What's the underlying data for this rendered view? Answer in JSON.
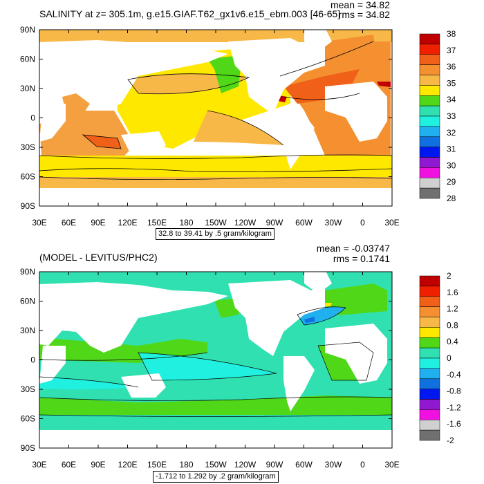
{
  "panels": [
    {
      "title": "SALINITY at z= 305.1m, g.e15.GIAF.T62_gx1v6.e15_ebm.003 [46-65]",
      "mean_label": "mean = 34.82",
      "rms_label": "rms = 34.82",
      "info_label": "32.8 to 39.41 by .5 gram/kilogram",
      "y_ticks": [
        "90N",
        "60N",
        "30N",
        "0",
        "30S",
        "60S",
        "90S"
      ],
      "x_ticks": [
        "30E",
        "60E",
        "90E",
        "120E",
        "150E",
        "180",
        "150W",
        "120W",
        "90W",
        "60W",
        "30W",
        "0",
        "30E"
      ],
      "colorbar_labels": [
        "38",
        "37",
        "36",
        "35",
        "34",
        "33",
        "32",
        "31",
        "30",
        "29",
        "28"
      ],
      "colorbar_colors": [
        "#c00000",
        "#ee2000",
        "#f06018",
        "#f49030",
        "#f8b848",
        "#ffe800",
        "#50d818",
        "#30e0b0",
        "#20f0e0",
        "#20b0f0",
        "#1070e0",
        "#0018f0",
        "#9018d0",
        "#f010e0",
        "#d0d0d0",
        "#707070"
      ]
    },
    {
      "title": "(MODEL - LEVITUS/PHC2)",
      "mean_label": "mean = -0.03747",
      "rms_label": "rms = 0.1741",
      "info_label": "-1.712 to 1.292 by .2 gram/kilogram",
      "y_ticks": [
        "90N",
        "60N",
        "30N",
        "0",
        "30S",
        "60S",
        "90S"
      ],
      "x_ticks": [
        "30E",
        "60E",
        "90E",
        "120E",
        "150E",
        "180",
        "150W",
        "120W",
        "90W",
        "60W",
        "30W",
        "0",
        "30E"
      ],
      "colorbar_labels": [
        "2",
        "1.6",
        "1.2",
        "0.8",
        "0.4",
        "0",
        "-0.4",
        "-0.8",
        "-1.2",
        "-1.6",
        "-2"
      ],
      "colorbar_colors": [
        "#c00000",
        "#ee2000",
        "#f06018",
        "#f49030",
        "#f8b848",
        "#ffe800",
        "#50d818",
        "#30e0b0",
        "#20f0e0",
        "#20b0f0",
        "#1070e0",
        "#0018f0",
        "#9018d0",
        "#f010e0",
        "#d0d0d0",
        "#707070"
      ]
    }
  ],
  "chart_data": [
    {
      "type": "heatmap",
      "title": "SALINITY at z= 305.1m, g.e15.GIAF.T62_gx1v6.e15_ebm.003 [46-65]",
      "x_ticks": [
        "30E",
        "60E",
        "90E",
        "120E",
        "150E",
        "180",
        "150W",
        "120W",
        "90W",
        "60W",
        "30W",
        "0",
        "30E"
      ],
      "y_ticks": [
        "90N",
        "60N",
        "30N",
        "0",
        "30S",
        "60S",
        "90S"
      ],
      "xlim": [
        30,
        390
      ],
      "ylim": [
        -90,
        90
      ],
      "colorbar_levels": [
        38,
        37,
        36,
        35,
        34,
        33,
        32,
        31,
        30,
        29,
        28
      ],
      "mean": 34.82,
      "rms": 34.82,
      "contour_min": 32.8,
      "contour_max": 39.41,
      "contour_interval": 0.5,
      "units": "gram/kilogram"
    },
    {
      "type": "heatmap",
      "title": "(MODEL - LEVITUS/PHC2)",
      "x_ticks": [
        "30E",
        "60E",
        "90E",
        "120E",
        "150E",
        "180",
        "150W",
        "120W",
        "90W",
        "60W",
        "30W",
        "0",
        "30E"
      ],
      "y_ticks": [
        "90N",
        "60N",
        "30N",
        "0",
        "30S",
        "60S",
        "90S"
      ],
      "xlim": [
        30,
        390
      ],
      "ylim": [
        -90,
        90
      ],
      "colorbar_levels": [
        2,
        1.6,
        1.2,
        0.8,
        0.4,
        0,
        -0.4,
        -0.8,
        -1.2,
        -1.6,
        -2
      ],
      "mean": -0.03747,
      "rms": 0.1741,
      "contour_min": -1.712,
      "contour_max": 1.292,
      "contour_interval": 0.2,
      "units": "gram/kilogram"
    }
  ]
}
